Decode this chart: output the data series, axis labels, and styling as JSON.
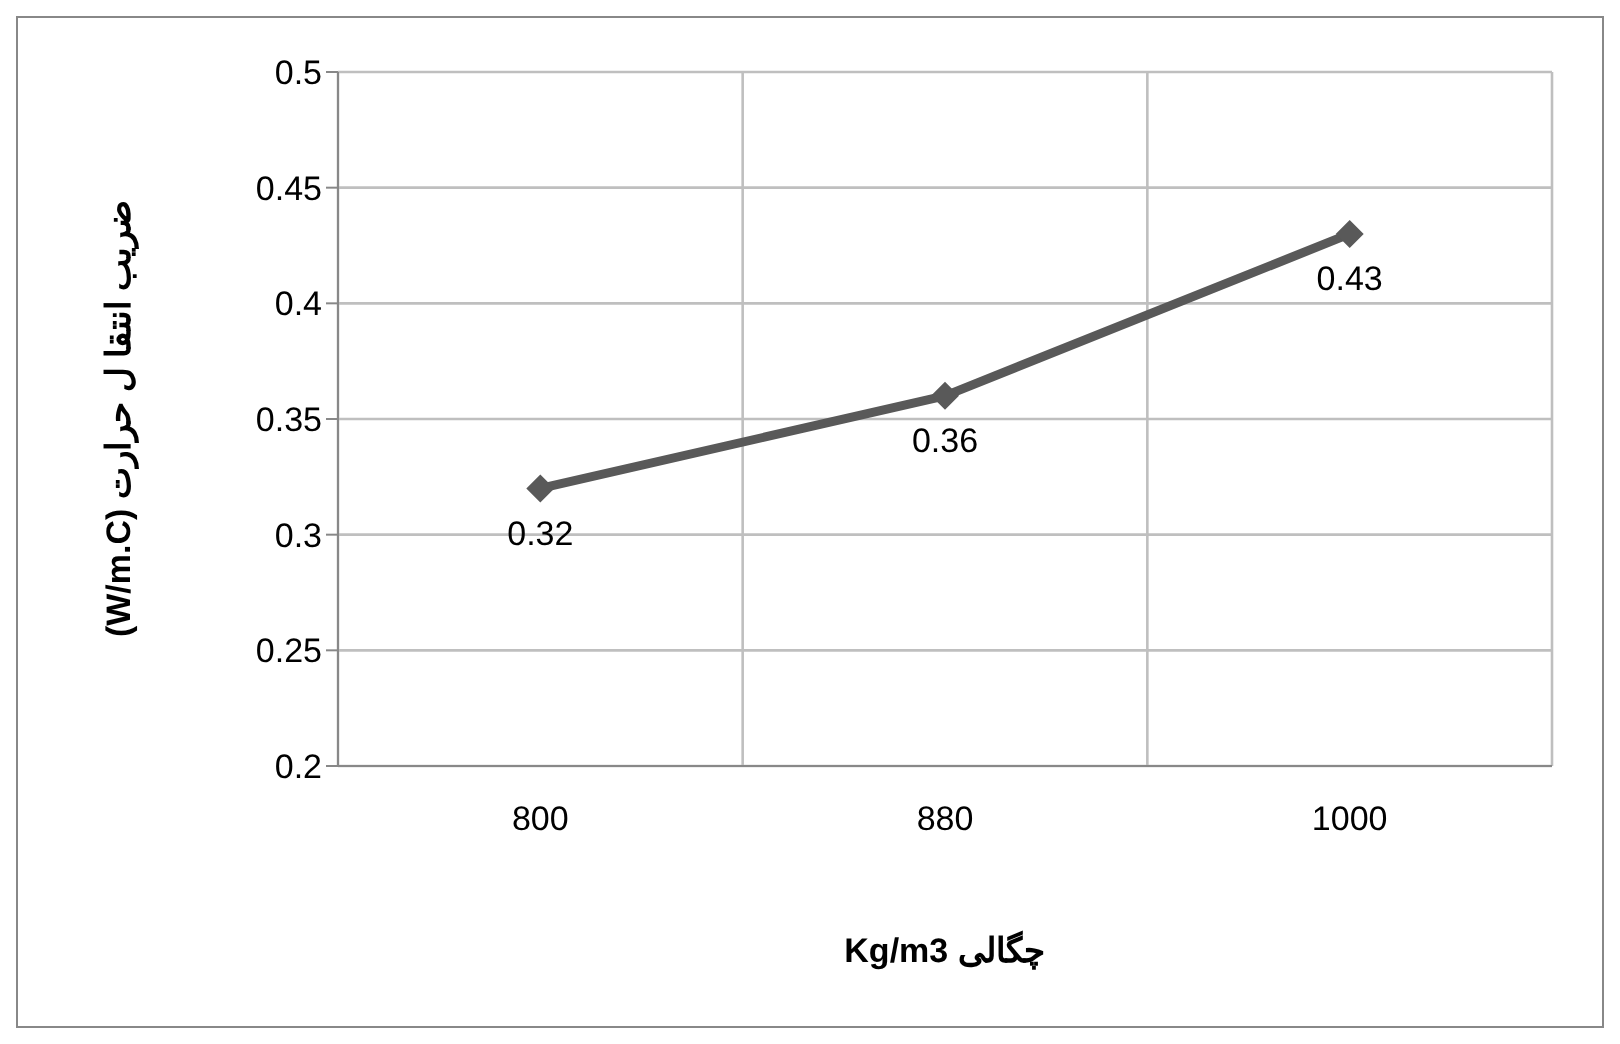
{
  "chart_data": {
    "type": "line",
    "xlabel": "Kg/m3 چگالی",
    "ylabel": "(W/m.C)  ضریب انتقا ل حرارت",
    "categories": [
      "800",
      "880",
      "1000"
    ],
    "series": [
      {
        "color": "#595959",
        "values": [
          0.32,
          0.36,
          0.43
        ]
      }
    ],
    "ylim": [
      0.2,
      0.5
    ],
    "yticks": [
      0.2,
      0.25,
      0.3,
      0.35,
      0.4,
      0.45,
      0.5
    ],
    "grid": true,
    "marker": "diamond",
    "line_style": "solid",
    "data_labels": true
  }
}
